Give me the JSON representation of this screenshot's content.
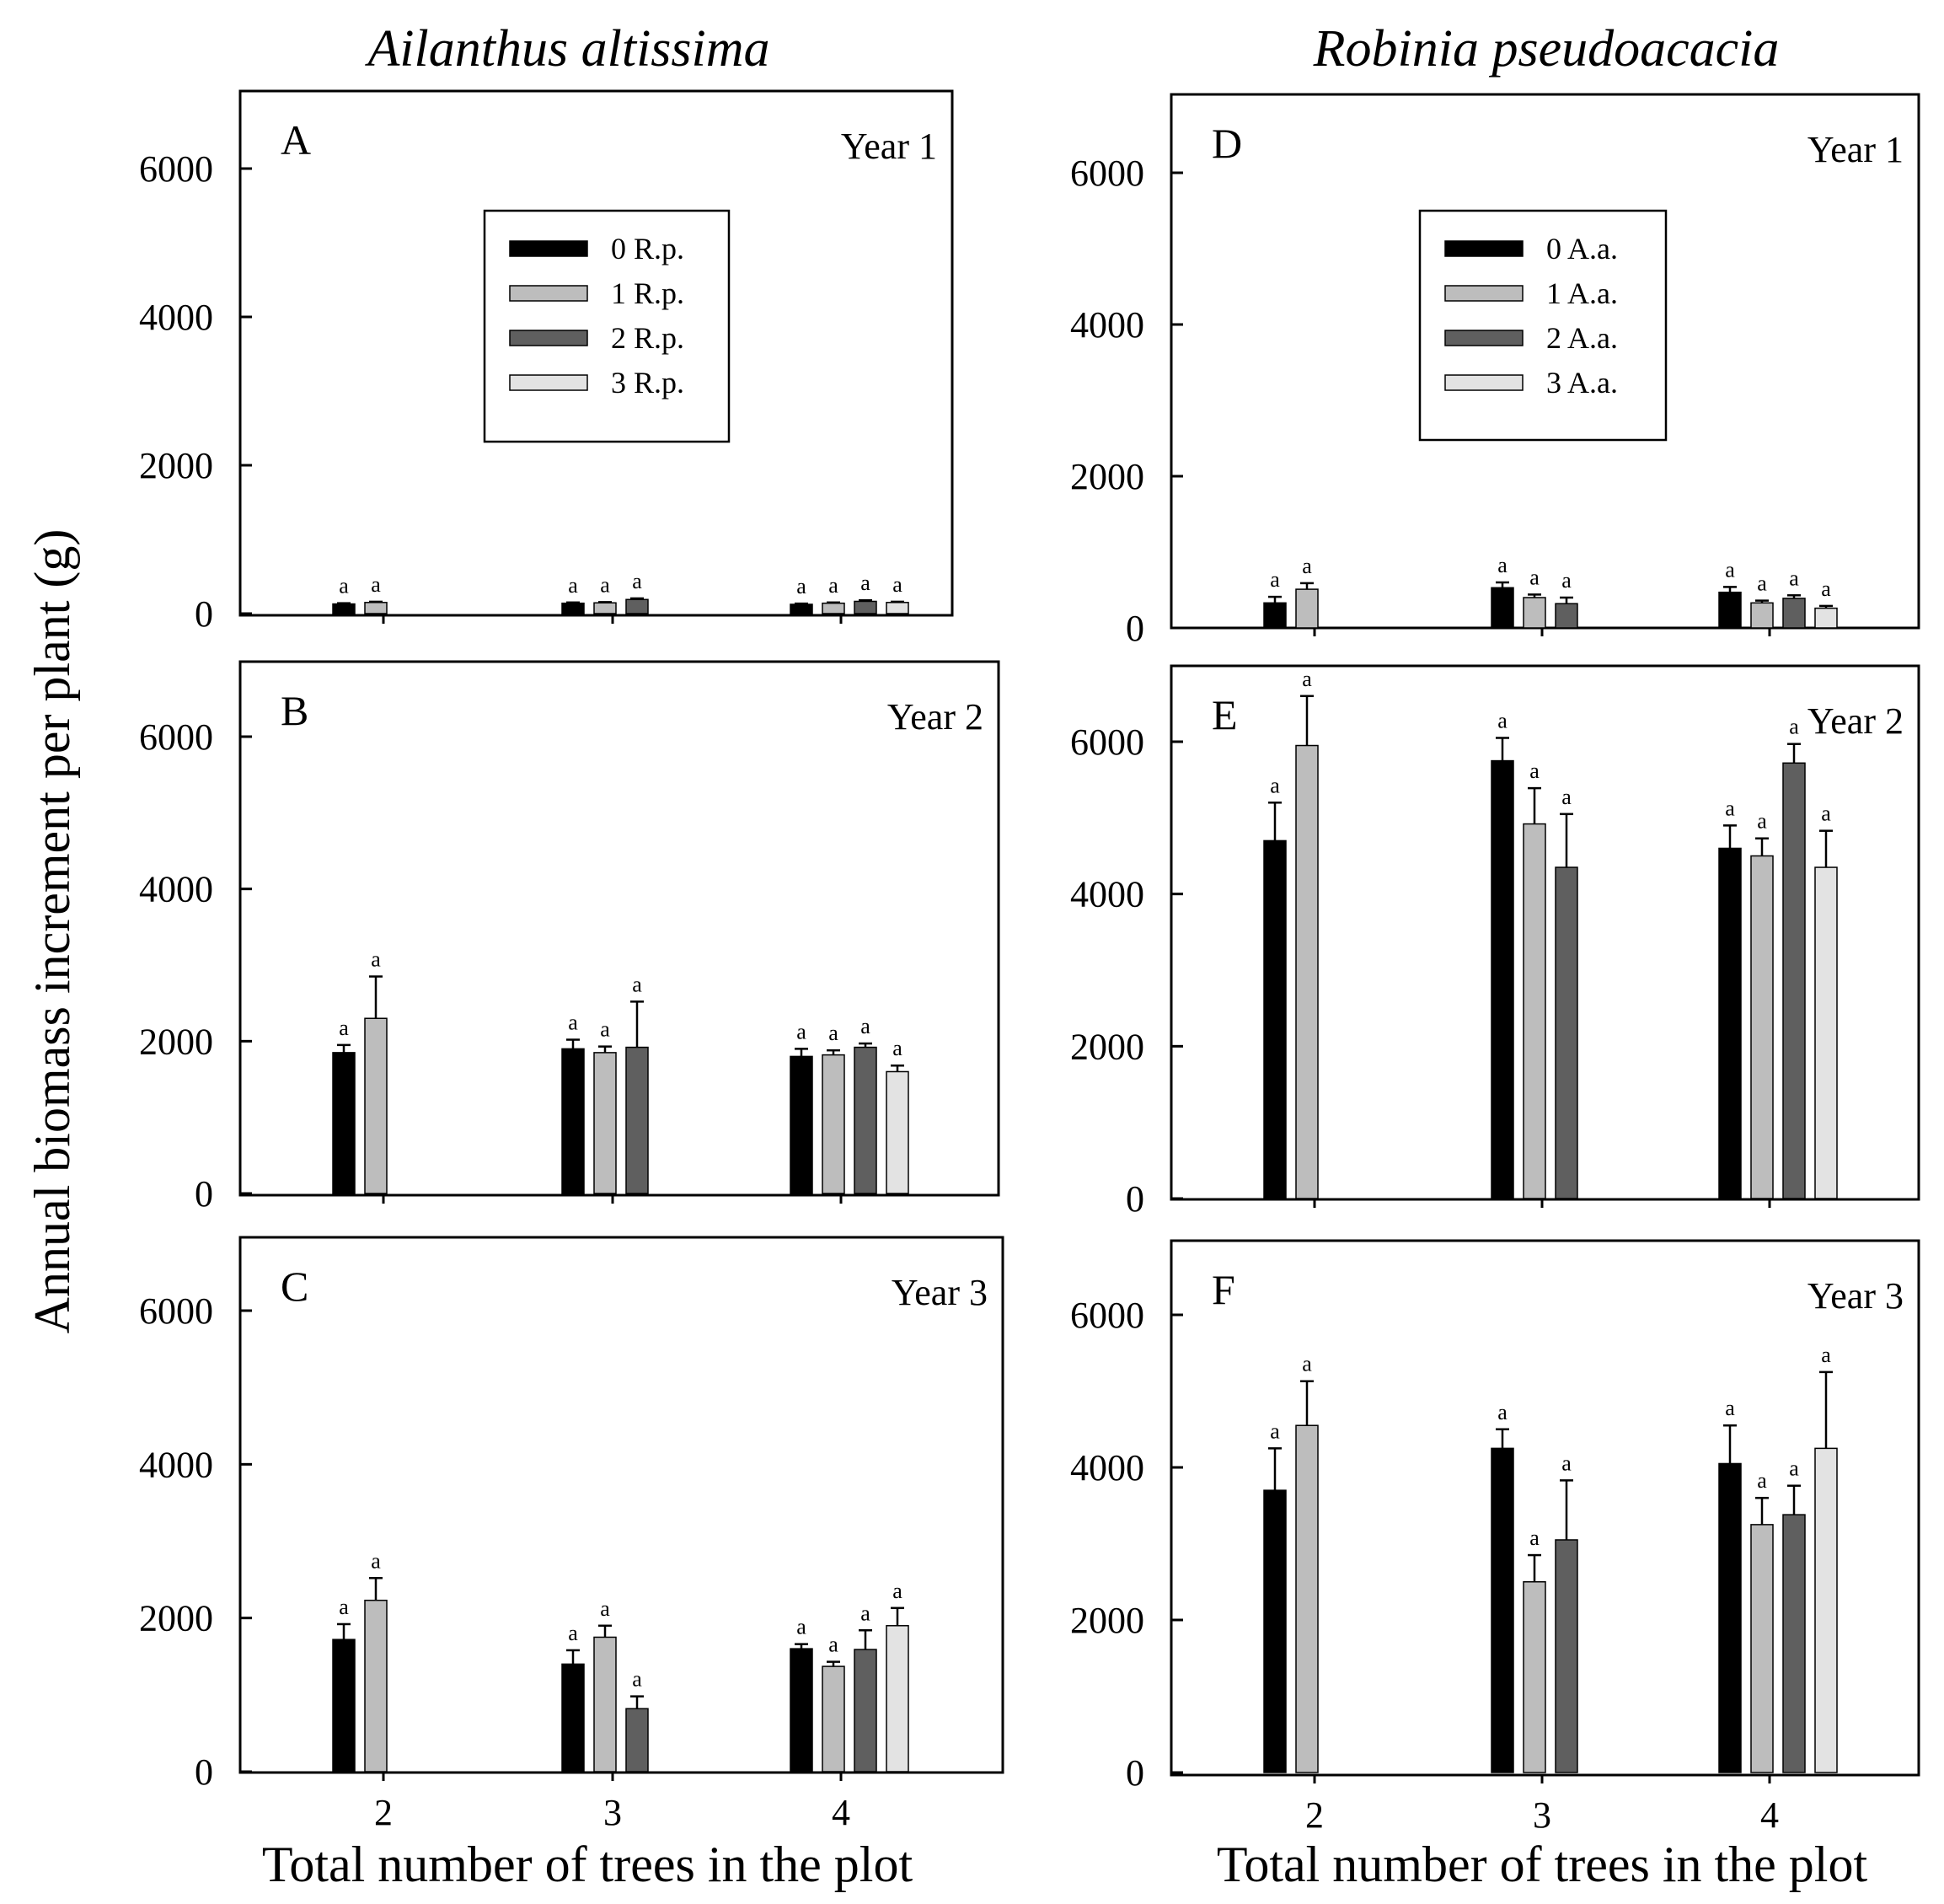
{
  "columns": [
    {
      "title": "Ailanthus altissima"
    },
    {
      "title": "Robinia pseudoacacia"
    }
  ],
  "y_axis_title": "Annual biomass increment per plant (g)",
  "x_axis_title": "Total number of trees in the plot",
  "colors": {
    "series0": "#000000",
    "series1": "#bdbdbd",
    "series2": "#5f5f5f",
    "series3": "#e3e3e3",
    "frame": "#000000"
  },
  "chart_data": [
    {
      "type": "bar",
      "panel": "A",
      "year": "Year 1",
      "column": 0,
      "categories": [
        "2",
        "3",
        "4"
      ],
      "ylim": [
        0,
        7000
      ],
      "yticks": [
        0,
        2000,
        4000,
        6000
      ],
      "legend": [
        "0 R.p.",
        "1 R.p.",
        "2 R.p.",
        "3 R.p."
      ],
      "series": [
        {
          "name": "0 R.p.",
          "values": [
            130,
            140,
            125
          ],
          "errors": [
            10,
            10,
            10
          ],
          "sig": [
            "a",
            "a",
            "a"
          ]
        },
        {
          "name": "1 R.p.",
          "values": [
            150,
            145,
            140
          ],
          "errors": [
            10,
            10,
            10
          ],
          "sig": [
            "a",
            "a",
            "a"
          ]
        },
        {
          "name": "2 R.p.",
          "values": [
            null,
            190,
            165
          ],
          "errors": [
            null,
            15,
            15
          ],
          "sig": [
            null,
            "a",
            "a"
          ]
        },
        {
          "name": "3 R.p.",
          "values": [
            null,
            null,
            150
          ],
          "errors": [
            null,
            null,
            10
          ],
          "sig": [
            null,
            null,
            "a"
          ]
        }
      ]
    },
    {
      "type": "bar",
      "panel": "B",
      "year": "Year 2",
      "column": 0,
      "categories": [
        "2",
        "3",
        "4"
      ],
      "ylim": [
        0,
        7000
      ],
      "yticks": [
        0,
        2000,
        4000,
        6000
      ],
      "series": [
        {
          "name": "0 R.p.",
          "values": [
            1850,
            1900,
            1800
          ],
          "errors": [
            100,
            120,
            100
          ],
          "sig": [
            "a",
            "a",
            "a"
          ]
        },
        {
          "name": "1 R.p.",
          "values": [
            2300,
            1850,
            1820
          ],
          "errors": [
            550,
            80,
            60
          ],
          "sig": [
            "a",
            "a",
            "a"
          ]
        },
        {
          "name": "2 R.p.",
          "values": [
            null,
            1920,
            1920
          ],
          "errors": [
            null,
            600,
            50
          ],
          "sig": [
            null,
            "a",
            "a"
          ]
        },
        {
          "name": "3 R.p.",
          "values": [
            null,
            null,
            1600
          ],
          "errors": [
            null,
            null,
            80
          ],
          "sig": [
            null,
            null,
            "a"
          ]
        }
      ]
    },
    {
      "type": "bar",
      "panel": "C",
      "year": "Year 3",
      "column": 0,
      "categories": [
        "2",
        "3",
        "4"
      ],
      "ylim": [
        0,
        7000
      ],
      "yticks": [
        0,
        2000,
        4000,
        6000
      ],
      "series": [
        {
          "name": "0 R.p.",
          "values": [
            1720,
            1400,
            1600
          ],
          "errors": [
            200,
            180,
            60
          ],
          "sig": [
            "a",
            "a",
            "a"
          ]
        },
        {
          "name": "1 R.p.",
          "values": [
            2230,
            1750,
            1370
          ],
          "errors": [
            290,
            150,
            60
          ],
          "sig": [
            "a",
            "a",
            "a"
          ]
        },
        {
          "name": "2 R.p.",
          "values": [
            null,
            820,
            1590
          ],
          "errors": [
            null,
            160,
            250
          ],
          "sig": [
            null,
            "a",
            "a"
          ]
        },
        {
          "name": "3 R.p.",
          "values": [
            null,
            null,
            1900
          ],
          "errors": [
            null,
            null,
            230
          ],
          "sig": [
            null,
            null,
            "a"
          ]
        }
      ]
    },
    {
      "type": "bar",
      "panel": "D",
      "year": "Year 1",
      "column": 1,
      "categories": [
        "2",
        "3",
        "4"
      ],
      "ylim": [
        0,
        7000
      ],
      "yticks": [
        0,
        2000,
        4000,
        6000
      ],
      "legend": [
        "0 A.a.",
        "1 A.a.",
        "2 A.a.",
        "3 A.a."
      ],
      "series": [
        {
          "name": "0 A.a.",
          "values": [
            330,
            530,
            470
          ],
          "errors": [
            80,
            70,
            70
          ],
          "sig": [
            "a",
            "a",
            "a"
          ]
        },
        {
          "name": "1 A.a.",
          "values": [
            510,
            400,
            330
          ],
          "errors": [
            80,
            40,
            30
          ],
          "sig": [
            "a",
            "a",
            "a"
          ]
        },
        {
          "name": "2 A.a.",
          "values": [
            null,
            320,
            390
          ],
          "errors": [
            null,
            80,
            40
          ],
          "sig": [
            null,
            "a",
            "a"
          ]
        },
        {
          "name": "3 A.a.",
          "values": [
            null,
            null,
            260
          ],
          "errors": [
            null,
            null,
            30
          ],
          "sig": [
            null,
            null,
            "a"
          ]
        }
      ]
    },
    {
      "type": "bar",
      "panel": "E",
      "year": "Year 2",
      "column": 1,
      "categories": [
        "2",
        "3",
        "4"
      ],
      "ylim": [
        0,
        7000
      ],
      "yticks": [
        0,
        2000,
        4000,
        6000
      ],
      "series": [
        {
          "name": "0 A.a.",
          "values": [
            4700,
            5750,
            4600
          ],
          "errors": [
            500,
            300,
            300
          ],
          "sig": [
            "a",
            "a",
            "a"
          ]
        },
        {
          "name": "1 A.a.",
          "values": [
            5950,
            4920,
            4500
          ],
          "errors": [
            650,
            470,
            230
          ],
          "sig": [
            "a",
            "a",
            "a"
          ]
        },
        {
          "name": "2 A.a.",
          "values": [
            null,
            4350,
            5720
          ],
          "errors": [
            null,
            700,
            250
          ],
          "sig": [
            null,
            "a",
            "a"
          ]
        },
        {
          "name": "3 A.a.",
          "values": [
            null,
            null,
            4350
          ],
          "errors": [
            null,
            null,
            480
          ],
          "sig": [
            null,
            null,
            "a"
          ]
        }
      ]
    },
    {
      "type": "bar",
      "panel": "F",
      "year": "Year 3",
      "column": 1,
      "categories": [
        "2",
        "3",
        "4"
      ],
      "ylim": [
        0,
        7000
      ],
      "yticks": [
        0,
        2000,
        4000,
        6000
      ],
      "series": [
        {
          "name": "0 A.a.",
          "values": [
            3700,
            4250,
            4050
          ],
          "errors": [
            550,
            250,
            500
          ],
          "sig": [
            "a",
            "a",
            "a"
          ]
        },
        {
          "name": "1 A.a.",
          "values": [
            4550,
            2500,
            3250
          ],
          "errors": [
            580,
            350,
            350
          ],
          "sig": [
            "a",
            "a",
            "a"
          ]
        },
        {
          "name": "2 A.a.",
          "values": [
            null,
            3050,
            3380
          ],
          "errors": [
            null,
            780,
            380
          ],
          "sig": [
            null,
            "a",
            "a"
          ]
        },
        {
          "name": "3 A.a.",
          "values": [
            null,
            null,
            4250
          ],
          "errors": [
            null,
            null,
            1000
          ],
          "sig": [
            null,
            null,
            "a"
          ]
        }
      ]
    }
  ]
}
